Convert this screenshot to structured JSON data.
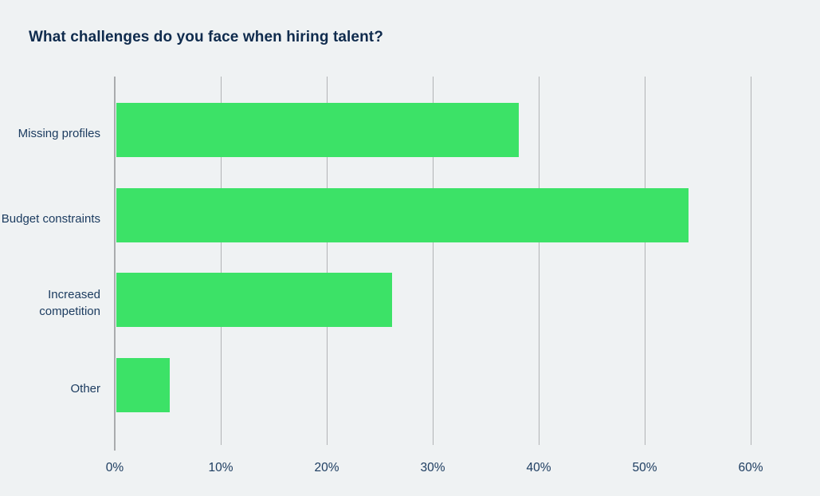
{
  "page": {
    "background_color": "#eff2f3"
  },
  "chart_data": {
    "type": "bar",
    "orientation": "horizontal",
    "title": "What challenges do you face when hiring talent?",
    "categories": [
      "Missing profiles",
      "Budget constraints",
      "Increased competition",
      "Other"
    ],
    "values": [
      38,
      54,
      26,
      5
    ],
    "value_unit": "%",
    "xlabel": "",
    "ylabel": "",
    "xlim": [
      0,
      60
    ],
    "tick_values": [
      0,
      10,
      20,
      30,
      40,
      50,
      60
    ],
    "tick_labels": [
      "0%",
      "10%",
      "20%",
      "30%",
      "40%",
      "50%",
      "60%"
    ],
    "grid": true,
    "grid_direction": "vertical",
    "legend": false,
    "colors": {
      "bar": "#3ce267",
      "grid_line": "#b1b3b5",
      "axis_line": "#a9abad",
      "title_text": "#0f2b4d",
      "label_text": "#1c3c60",
      "background": "#eff2f3"
    }
  }
}
